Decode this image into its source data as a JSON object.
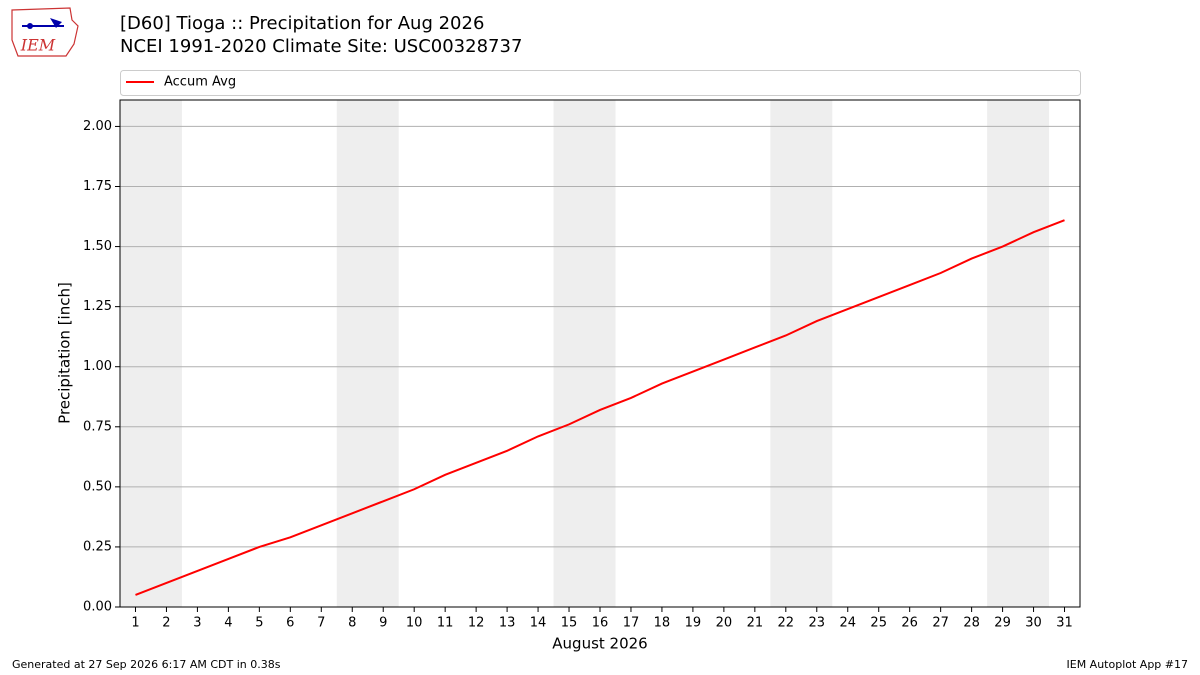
{
  "logo": "IEM",
  "chart_data": {
    "type": "line",
    "title": "[D60] Tioga :: Precipitation for Aug 2026",
    "subtitle": "NCEI 1991-2020 Climate Site: USC00328737",
    "x_label": "August 2026",
    "y_label": "Precipitation [inch]",
    "x": [
      1,
      2,
      3,
      4,
      5,
      6,
      7,
      8,
      9,
      10,
      11,
      12,
      13,
      14,
      15,
      16,
      17,
      18,
      19,
      20,
      21,
      22,
      23,
      24,
      25,
      26,
      27,
      28,
      29,
      30,
      31
    ],
    "series": [
      {
        "name": "Accum Avg",
        "color": "#ff0000",
        "values": [
          0.05,
          0.1,
          0.15,
          0.2,
          0.25,
          0.29,
          0.34,
          0.39,
          0.44,
          0.49,
          0.55,
          0.6,
          0.65,
          0.71,
          0.76,
          0.82,
          0.87,
          0.93,
          0.98,
          1.03,
          1.08,
          1.13,
          1.19,
          1.24,
          1.29,
          1.34,
          1.39,
          1.45,
          1.5,
          1.56,
          1.61
        ]
      }
    ],
    "xlim": [
      0.5,
      31.5
    ],
    "xticks": [
      1,
      2,
      3,
      4,
      5,
      6,
      7,
      8,
      9,
      10,
      11,
      12,
      13,
      14,
      15,
      16,
      17,
      18,
      19,
      20,
      21,
      22,
      23,
      24,
      25,
      26,
      27,
      28,
      29,
      30,
      31
    ],
    "ylim": [
      0,
      2.11
    ],
    "yticks": [
      {
        "value": 0,
        "label": "0.00"
      },
      0.25,
      {
        "value": 0.5,
        "label": "0.50"
      },
      0.75,
      {
        "value": 1,
        "label": "1.00"
      },
      1.25,
      {
        "value": 1.5,
        "label": "1.50"
      },
      1.75,
      {
        "value": 2,
        "label": "2.00"
      }
    ],
    "grid": true,
    "weekend_spans": [
      [
        0.5,
        2.5
      ],
      [
        7.5,
        9.5
      ],
      [
        14.5,
        16.5
      ],
      [
        21.5,
        23.5
      ],
      [
        28.5,
        30.5
      ]
    ],
    "legend": "top",
    "footer_left": "Generated at 27 Sep 2026 6:17 AM CDT in 0.38s",
    "footer_right": "IEM Autoplot App #17"
  }
}
